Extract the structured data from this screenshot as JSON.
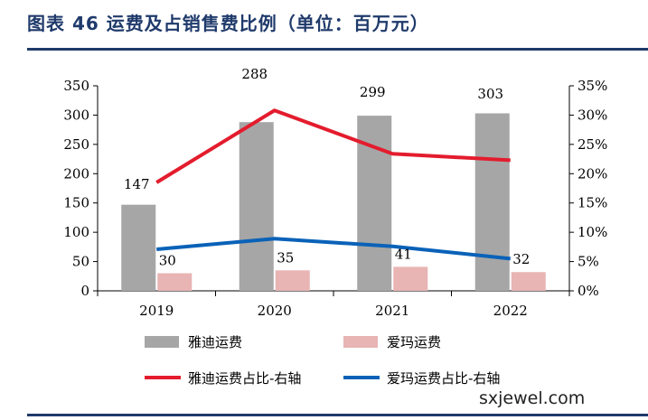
{
  "header": {
    "title": "图表 46 运费及占销售费比例（单位：百万元）"
  },
  "watermark": "sxjewel.com",
  "colors": {
    "bar_yadi": "#a6a6a6",
    "bar_aima": "#e8b4b4",
    "line_yadi": "#e31c2d",
    "line_aima": "#0a62b8",
    "title": "#1f3a6b"
  },
  "chart_data": {
    "type": "bar",
    "categories": [
      "2019",
      "2020",
      "2021",
      "2022"
    ],
    "ylim": [
      0,
      350
    ],
    "y_ticks": [
      "0",
      "50",
      "100",
      "150",
      "200",
      "250",
      "300",
      "350"
    ],
    "y2lim": [
      0,
      35
    ],
    "y2_ticks": [
      "0%",
      "5%",
      "10%",
      "15%",
      "20%",
      "25%",
      "30%",
      "35%"
    ],
    "series": [
      {
        "name": "雅迪运费",
        "kind": "bar",
        "values": [
          147,
          288,
          299,
          303
        ],
        "labels": [
          "147",
          "288",
          "299",
          "303"
        ]
      },
      {
        "name": "爱玛运费",
        "kind": "bar",
        "values": [
          30,
          35,
          41,
          32
        ],
        "labels": [
          "30",
          "35",
          "41",
          "32"
        ]
      },
      {
        "name": "雅迪运费占比-右轴",
        "kind": "line",
        "axis": "right",
        "values": [
          18.5,
          30.8,
          23.4,
          22.3
        ]
      },
      {
        "name": "爱玛运费占比-右轴",
        "kind": "line",
        "axis": "right",
        "values": [
          7.1,
          8.9,
          7.6,
          5.5
        ]
      }
    ],
    "legend": "bottom",
    "grid": false
  }
}
